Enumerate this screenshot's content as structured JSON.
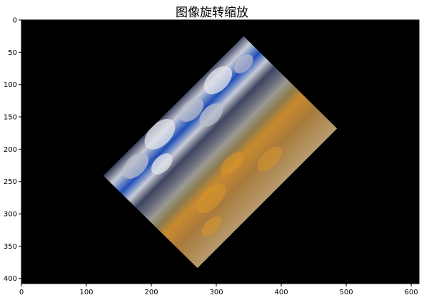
{
  "figure": {
    "title": "图像旋转缩放"
  },
  "image_axes": {
    "x_ticks": [
      0,
      100,
      200,
      300,
      400,
      500,
      600
    ],
    "y_ticks": [
      0,
      50,
      100,
      150,
      200,
      250,
      300,
      350,
      400
    ],
    "xlim": [
      0,
      612
    ],
    "ylim": [
      408,
      0
    ],
    "background_color": "#000000",
    "rotated_image_corners": [
      [
        342,
        25
      ],
      [
        486,
        168
      ],
      [
        271,
        384
      ],
      [
        126,
        241
      ]
    ]
  },
  "colors": {
    "sky_blue": "#1f4fb8",
    "cloud_gray": "#c9ccd6",
    "cloud_dark": "#3e4560",
    "ground_orange": "#c98a2e",
    "ground_tan": "#b89b6e"
  }
}
